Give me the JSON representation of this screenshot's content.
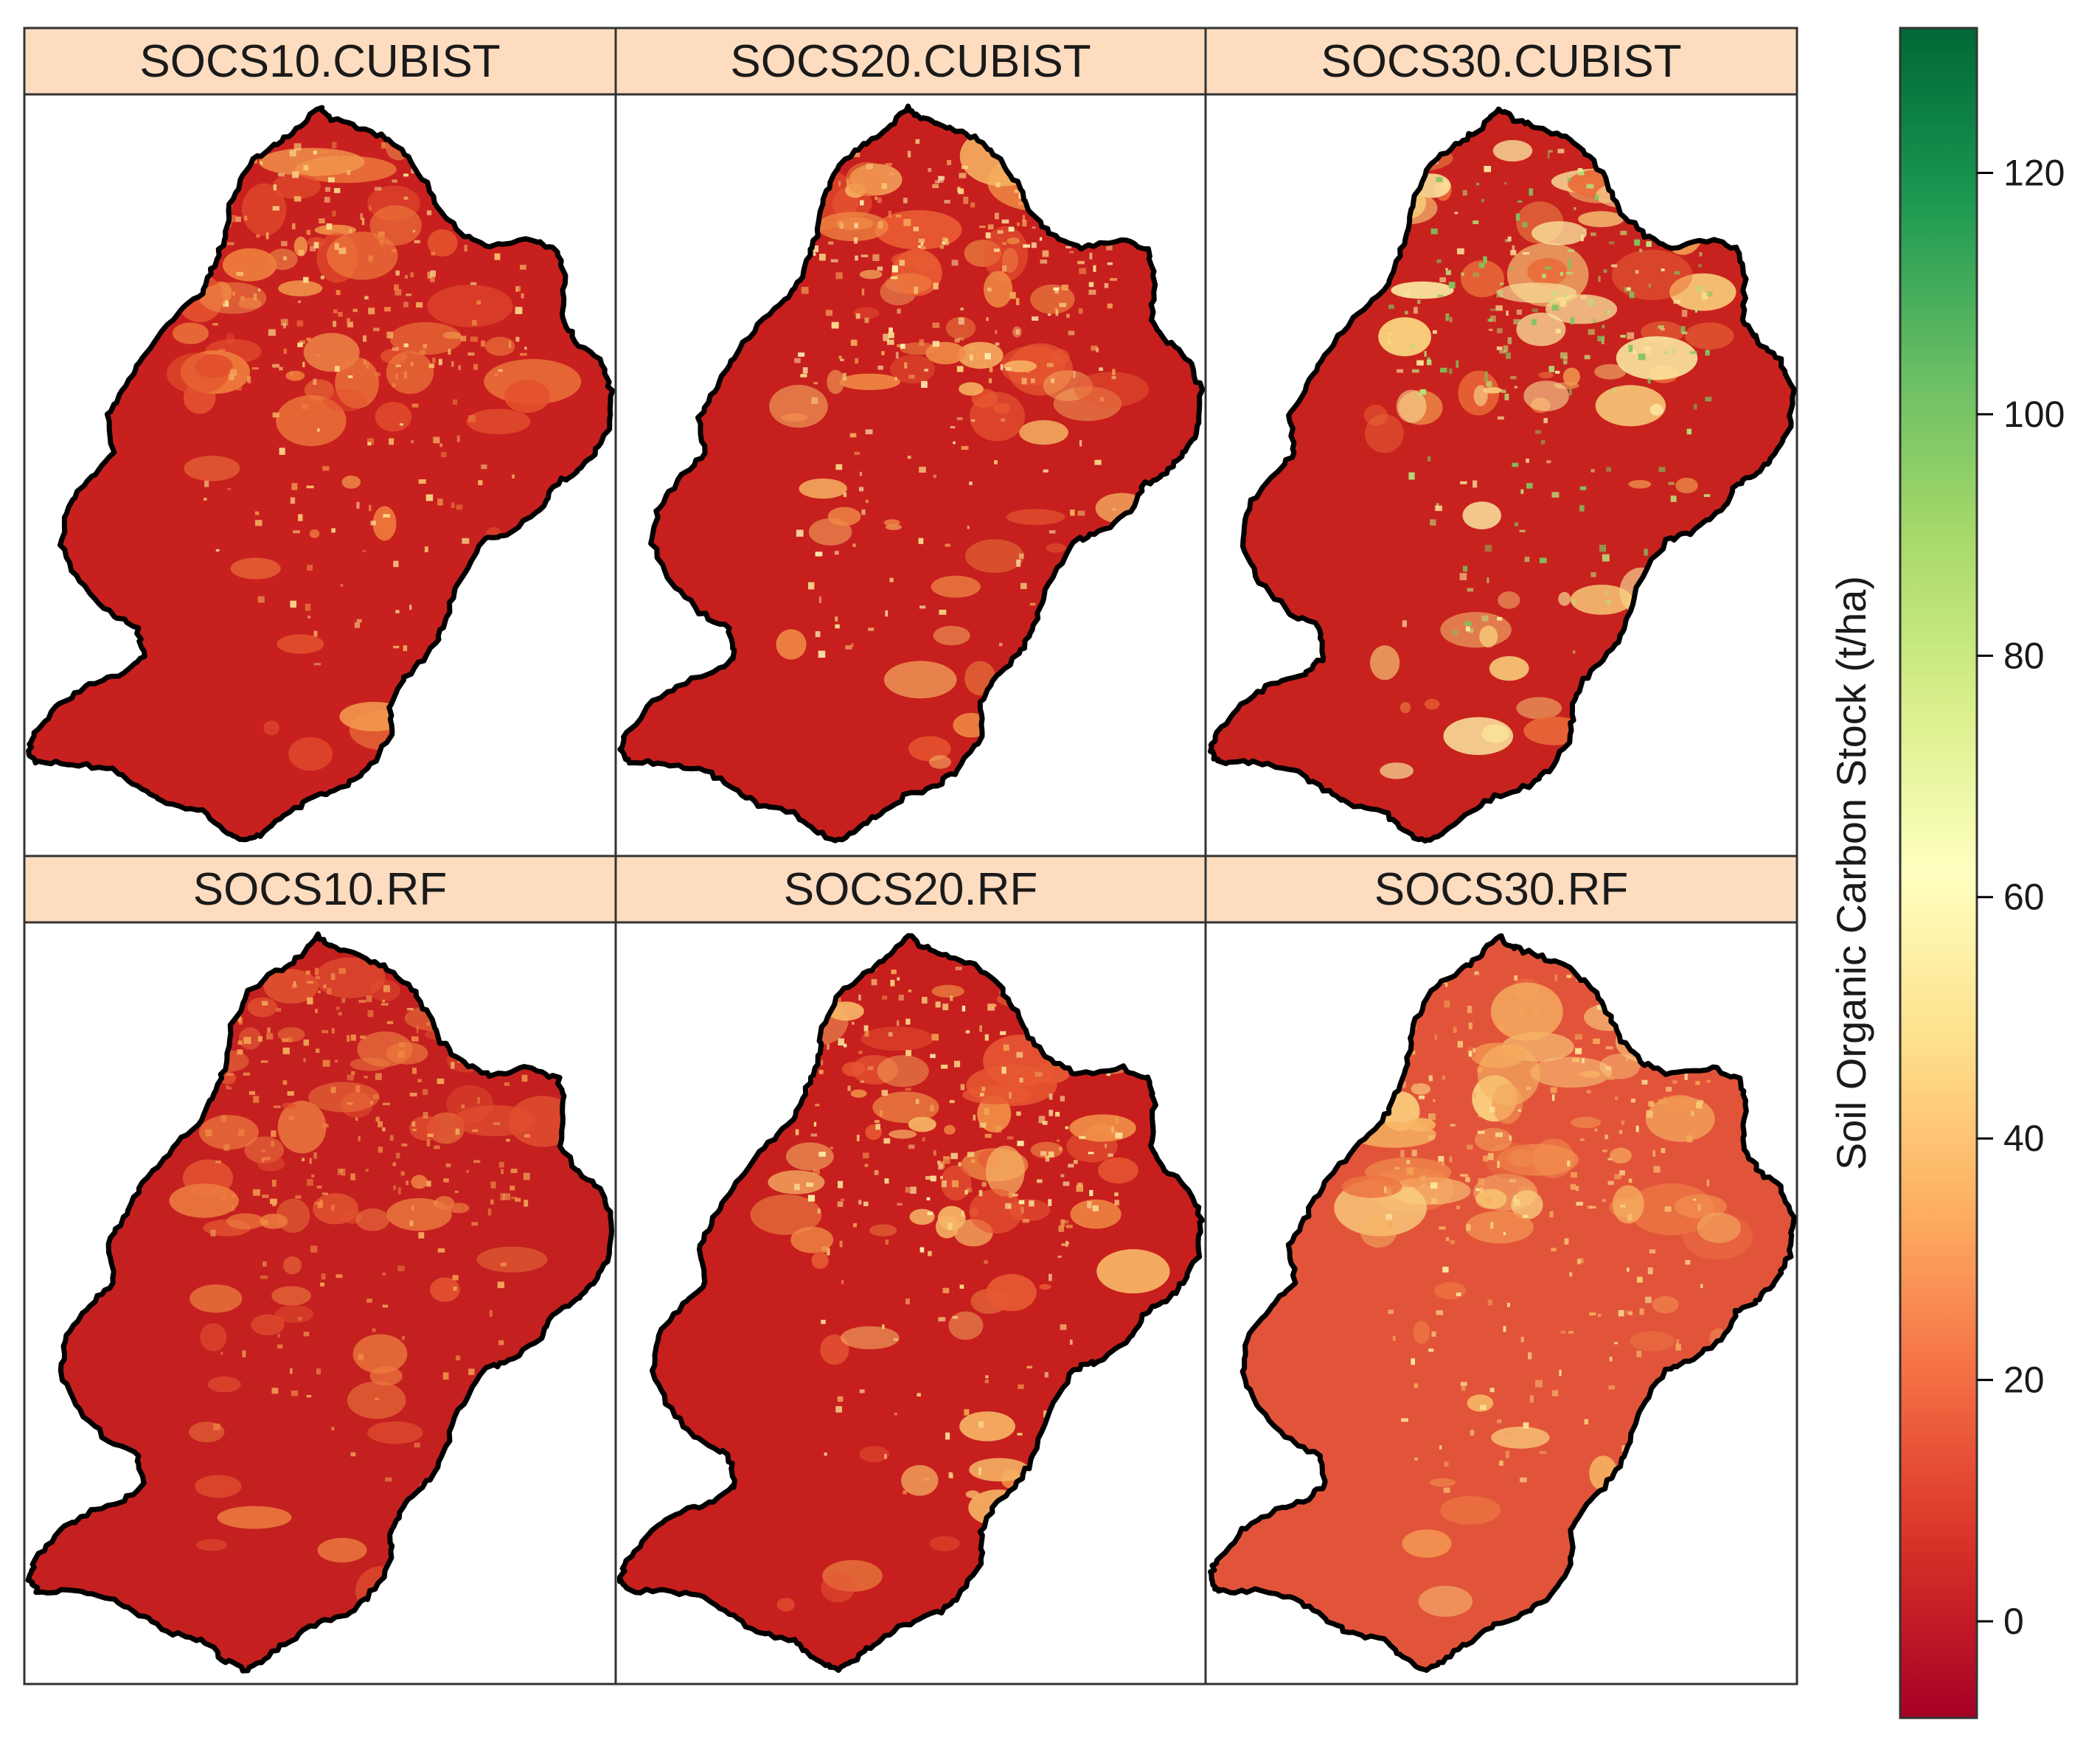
{
  "figure": {
    "panels": [
      {
        "id": "socs10-cubist",
        "title": "SOCS10.CUBIST",
        "palette": {
          "base": "#c8201e",
          "patches": [
            "#e3502e",
            "#ee7a3c",
            "#f29a4e"
          ],
          "dots": [
            "#ef8643",
            "#f6b866",
            "#f9d98a"
          ]
        }
      },
      {
        "id": "socs20-cubist",
        "title": "SOCS20.CUBIST",
        "palette": {
          "base": "#c61f1d",
          "patches": [
            "#e85a32",
            "#f08a45",
            "#f6b062"
          ],
          "dots": [
            "#f4a457",
            "#f9d887",
            "#fdf0b0"
          ]
        }
      },
      {
        "id": "socs30-cubist",
        "title": "SOCS30.CUBIST",
        "palette": {
          "base": "#c8221e",
          "patches": [
            "#ea6a38",
            "#f39f50",
            "#fad37e",
            "#fbe8a0"
          ],
          "dots": [
            "#fbe39a",
            "#b8e07a",
            "#7ec55f"
          ]
        }
      },
      {
        "id": "socs10-rf",
        "title": "SOCS10.RF",
        "palette": {
          "base": "#c42020",
          "patches": [
            "#e0502f",
            "#ec7a3e"
          ],
          "dots": [
            "#ef8a45",
            "#f3a658"
          ]
        }
      },
      {
        "id": "socs20-rf",
        "title": "SOCS20.RF",
        "palette": {
          "base": "#c71f1d",
          "patches": [
            "#e65833",
            "#f08c46",
            "#f6b465"
          ],
          "dots": [
            "#f3a455",
            "#f9d685",
            "#fbe9a2"
          ]
        }
      },
      {
        "id": "socs30-rf",
        "title": "SOCS30.RF",
        "palette": {
          "base": "#e2543a",
          "patches": [
            "#ec7442",
            "#f29350",
            "#f6b463",
            "#fad17f"
          ],
          "dots": [
            "#f8c875",
            "#fbe39a",
            "#f5a85b"
          ]
        }
      }
    ],
    "colorbar": {
      "title": "Soil Organic Carbon Stock (t/ha)",
      "min": -8,
      "max": 132,
      "ticks": [
        0,
        20,
        40,
        60,
        80,
        100,
        120
      ],
      "colors": [
        "#a50026",
        "#d73027",
        "#f46d43",
        "#fdae61",
        "#fee08b",
        "#ffffbf",
        "#d9ef8b",
        "#a6d96a",
        "#66bd63",
        "#1a9850",
        "#006837"
      ]
    }
  }
}
